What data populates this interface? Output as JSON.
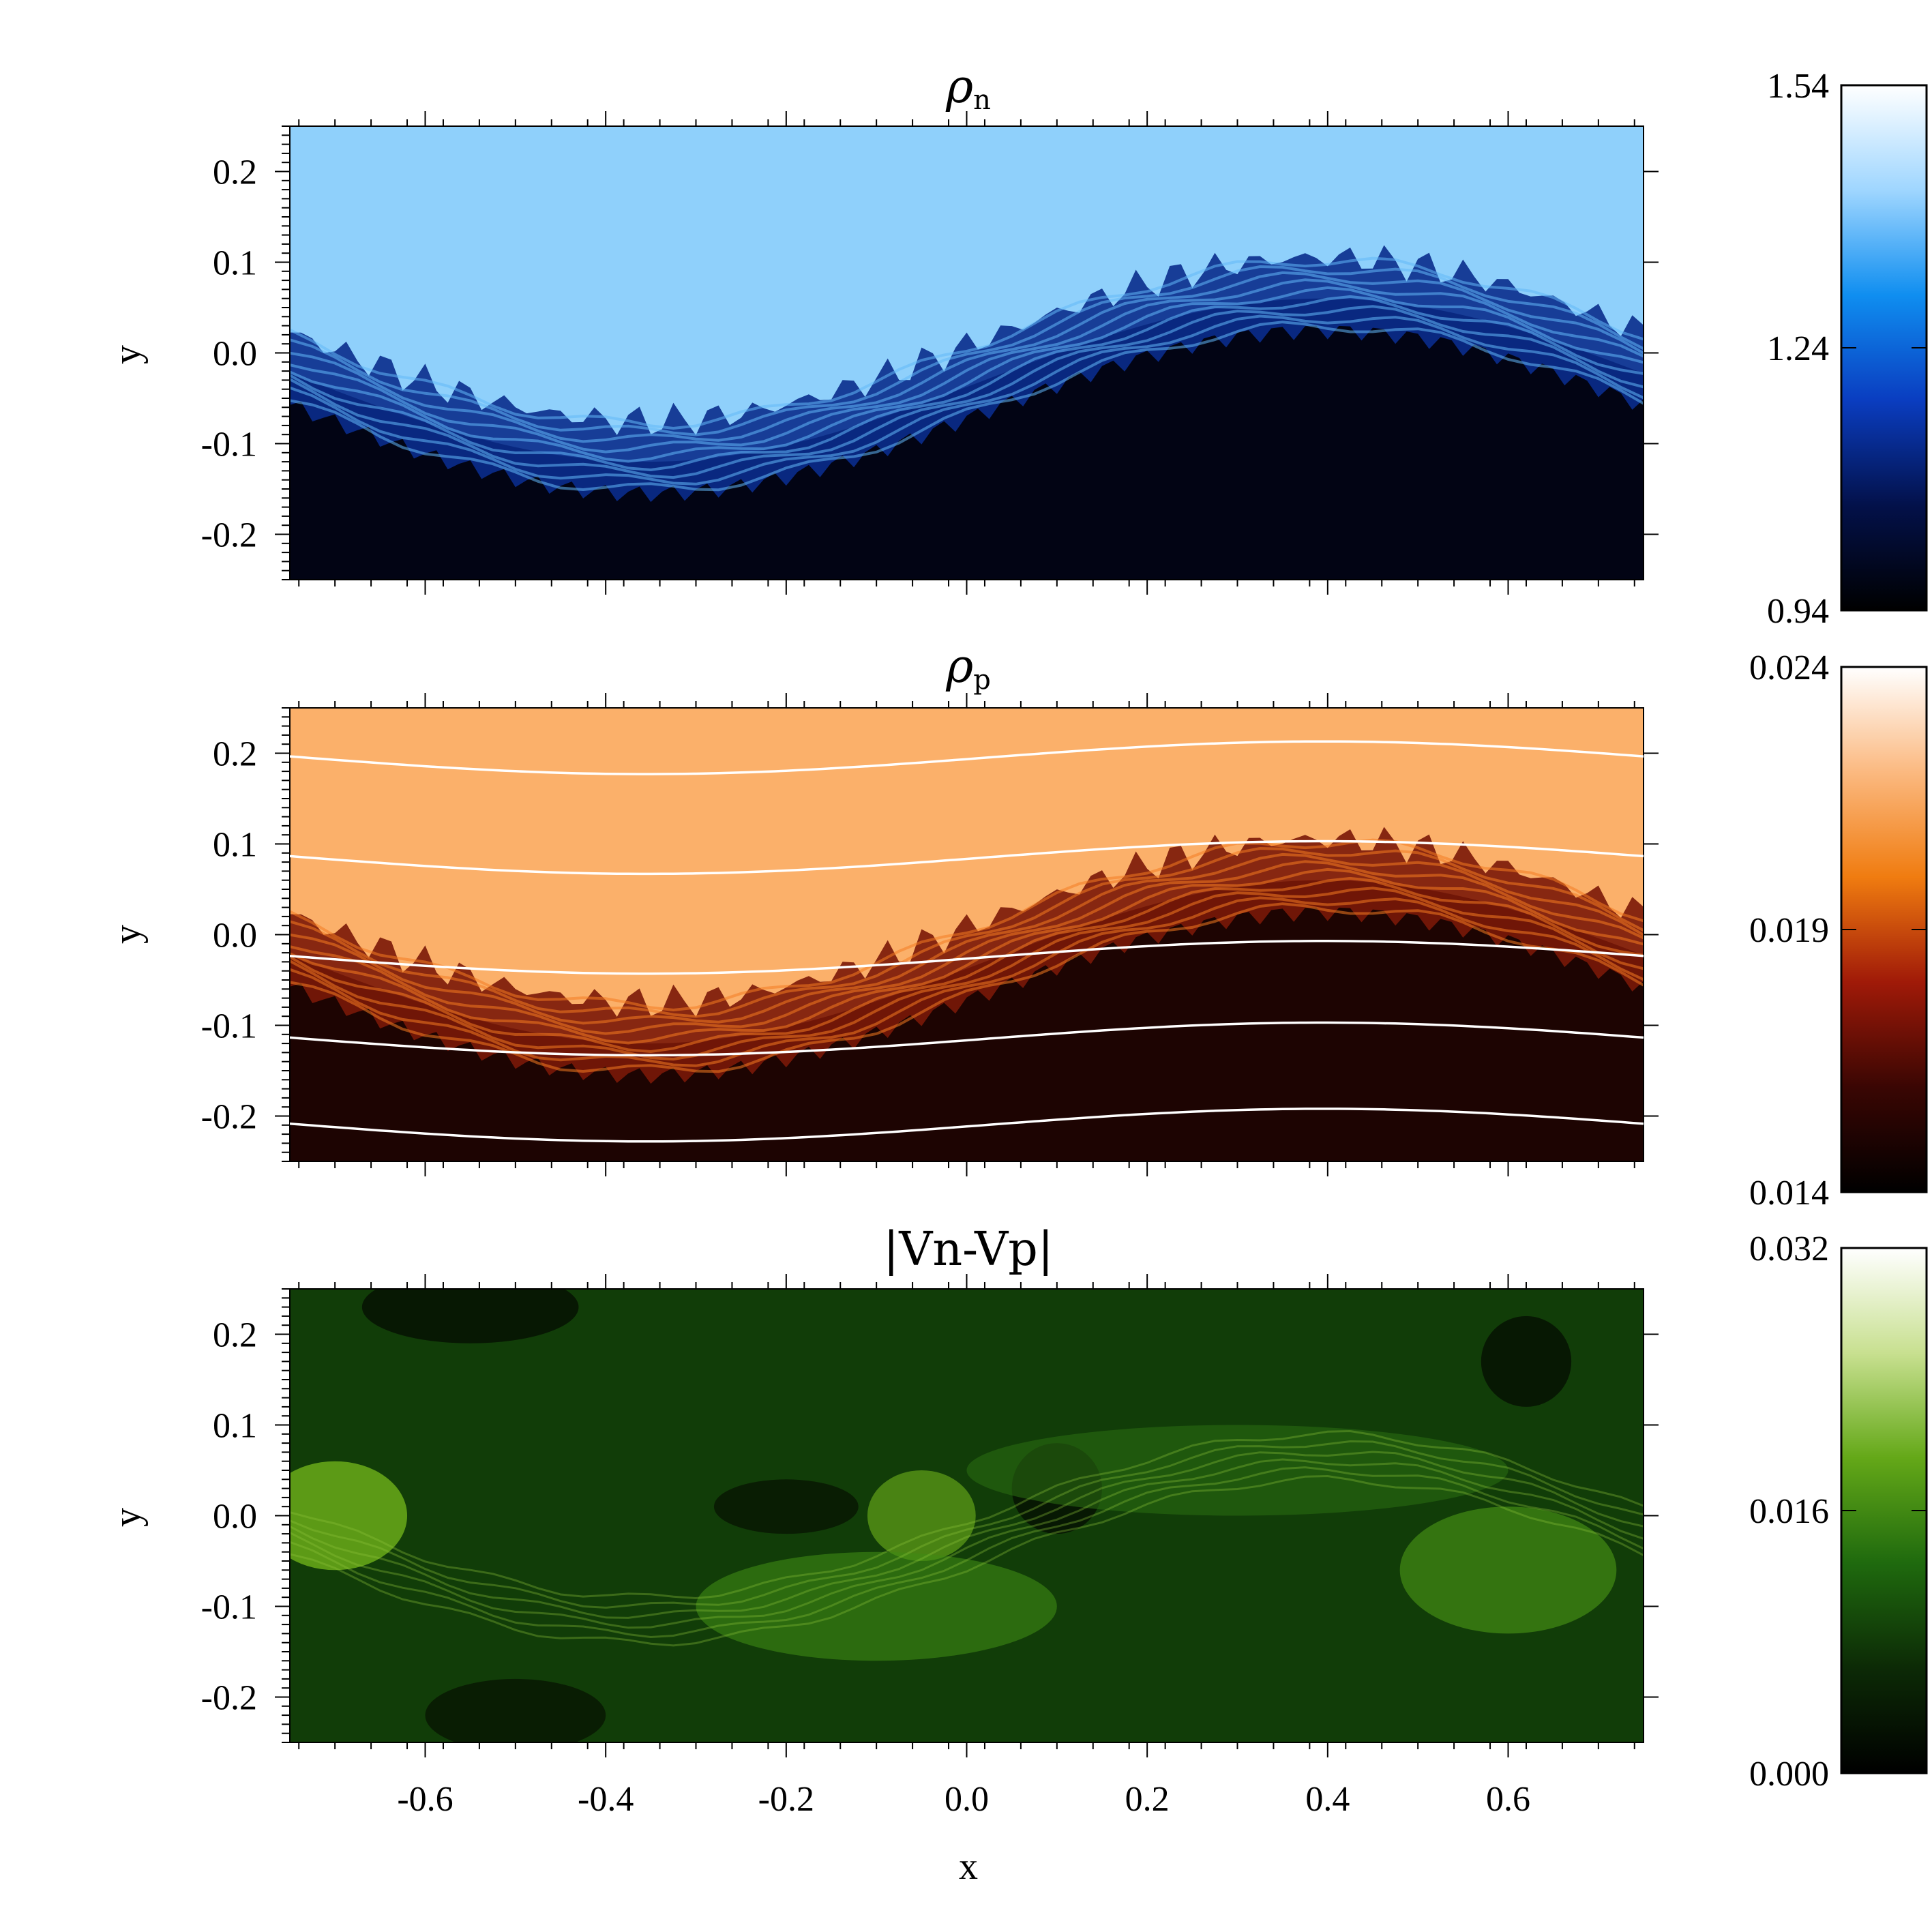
{
  "chart_data": [
    {
      "type": "heatmap",
      "title_symbol": "ρ",
      "title_sub": "n",
      "xlabel": "",
      "ylabel": "y",
      "xlim": [
        -0.75,
        0.75
      ],
      "ylim": [
        -0.25,
        0.25
      ],
      "x_ticks": [
        -0.6,
        -0.4,
        -0.2,
        0.0,
        0.2,
        0.4,
        0.6
      ],
      "y_ticks": [
        -0.2,
        -0.1,
        0.0,
        0.1,
        0.2
      ],
      "y_tick_labels": [
        "-0.2",
        "-0.1",
        "0.0",
        "0.1",
        "0.2"
      ],
      "colorbar": {
        "min": 0.94,
        "max": 1.54,
        "tick_values": [
          0.94,
          1.24,
          1.54
        ],
        "tick_labels": [
          "0.94",
          "1.24",
          "1.54"
        ],
        "colors": [
          "#000000",
          "#03114a",
          "#0a3dc0",
          "#0f8ef0",
          "#9fd6ff",
          "#ffffff"
        ]
      },
      "colors": {
        "upper": "#8fd0fb",
        "lower": "#020414",
        "mix": "#0a2c8c",
        "streak": "#62b8f8"
      }
    },
    {
      "type": "heatmap",
      "title_symbol": "ρ",
      "title_sub": "p",
      "xlabel": "",
      "ylabel": "y",
      "xlim": [
        -0.75,
        0.75
      ],
      "ylim": [
        -0.25,
        0.25
      ],
      "x_ticks": [
        -0.6,
        -0.4,
        -0.2,
        0.0,
        0.2,
        0.4,
        0.6
      ],
      "y_ticks": [
        -0.2,
        -0.1,
        0.0,
        0.1,
        0.2
      ],
      "y_tick_labels": [
        "-0.2",
        "-0.1",
        "0.0",
        "0.1",
        "0.2"
      ],
      "colorbar": {
        "min": 0.014,
        "max": 0.024,
        "tick_values": [
          0.014,
          0.019,
          0.024
        ],
        "tick_labels": [
          "0.014",
          "0.019",
          "0.024"
        ],
        "colors": [
          "#000000",
          "#3a0603",
          "#a01a08",
          "#f07c10",
          "#fbb980",
          "#ffffff"
        ]
      },
      "field_lines_y0": [
        0.195,
        0.085,
        -0.025,
        -0.115,
        -0.21
      ],
      "colors": {
        "upper": "#fbb06a",
        "lower": "#1d0402",
        "mix": "#7a1808",
        "streak": "#f47c20"
      }
    },
    {
      "type": "heatmap",
      "title_text": "|Vn-Vp|",
      "xlabel": "x",
      "ylabel": "y",
      "xlim": [
        -0.75,
        0.75
      ],
      "ylim": [
        -0.25,
        0.25
      ],
      "x_ticks": [
        -0.6,
        -0.4,
        -0.2,
        0.0,
        0.2,
        0.4,
        0.6
      ],
      "x_tick_labels": [
        "-0.6",
        "-0.4",
        "-0.2",
        "0.0",
        "0.2",
        "0.4",
        "0.6"
      ],
      "y_ticks": [
        -0.2,
        -0.1,
        0.0,
        0.1,
        0.2
      ],
      "y_tick_labels": [
        "-0.2",
        "-0.1",
        "0.0",
        "0.1",
        "0.2"
      ],
      "colorbar": {
        "min": 0.0,
        "max": 0.032,
        "tick_values": [
          0.0,
          0.016,
          0.032
        ],
        "tick_labels": [
          "0.000",
          "0.016",
          "0.032"
        ],
        "colors": [
          "#000000",
          "#0c2a06",
          "#1f6a0e",
          "#64a818",
          "#c8e090",
          "#ffffff"
        ]
      },
      "colors": {
        "base": "#113d08",
        "bright": "#6fb21a",
        "dark": "#050f02"
      }
    }
  ]
}
